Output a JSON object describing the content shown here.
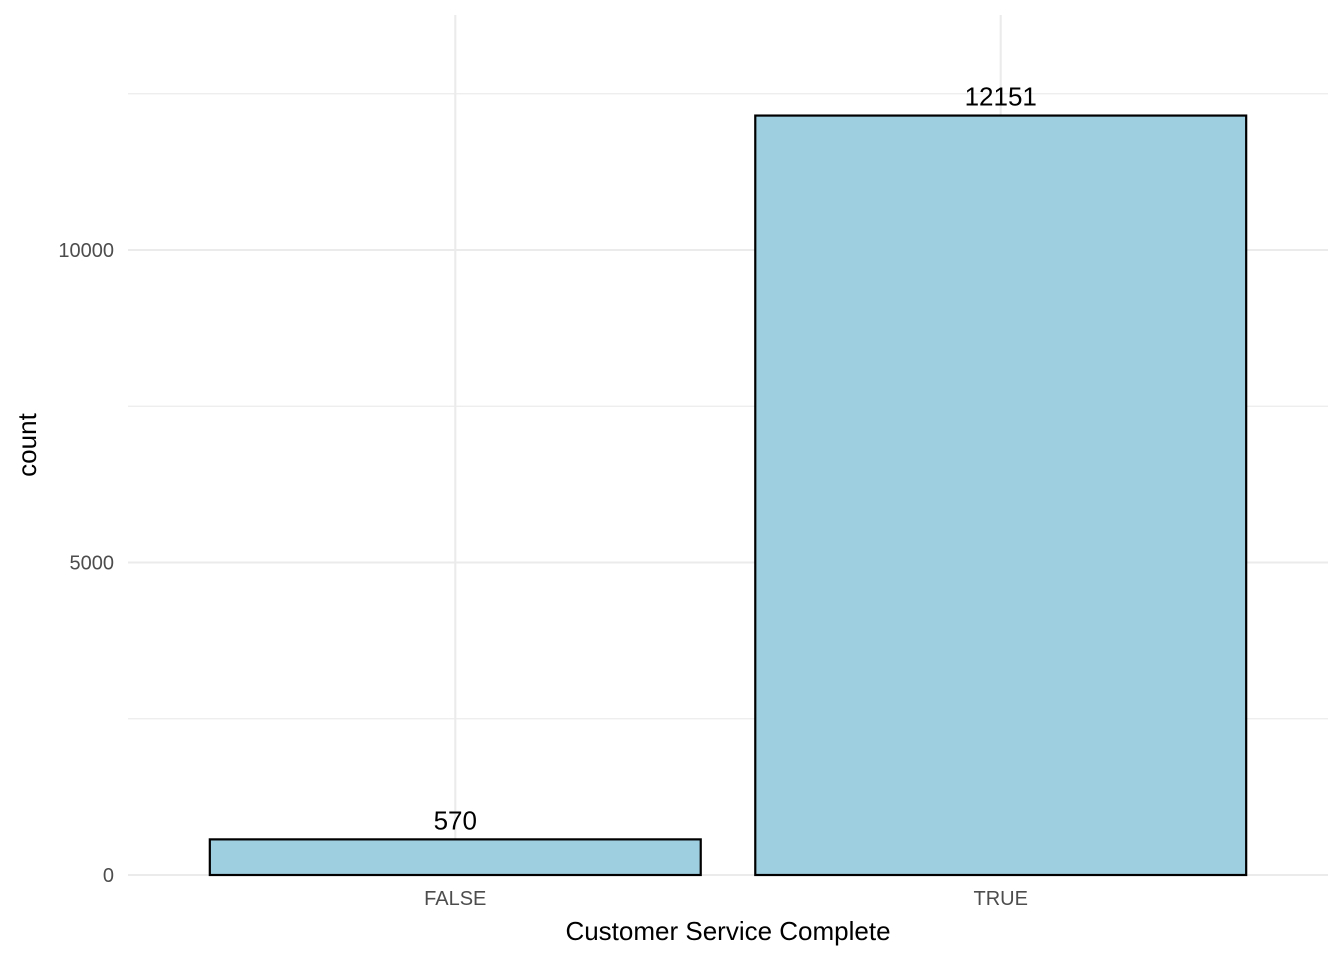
{
  "chart_data": {
    "type": "bar",
    "categories": [
      "FALSE",
      "TRUE"
    ],
    "values": [
      570,
      12151
    ],
    "data_labels": [
      "570",
      "12151"
    ],
    "xlabel": "Customer Service Complete",
    "ylabel": "count",
    "ylim": [
      0,
      13760
    ],
    "yticks": [
      0,
      5000,
      10000
    ],
    "ytick_labels": [
      "0",
      "5000",
      "10000"
    ],
    "y_minor_ticks": [
      2500,
      7500,
      12500
    ],
    "grid": true,
    "legend": "none",
    "colors": {
      "bar_fill": "#9ECFE0",
      "bar_stroke": "#000000",
      "grid": "#EBEBEB",
      "tick_text": "#4D4D4D",
      "title_text": "#000000"
    }
  }
}
